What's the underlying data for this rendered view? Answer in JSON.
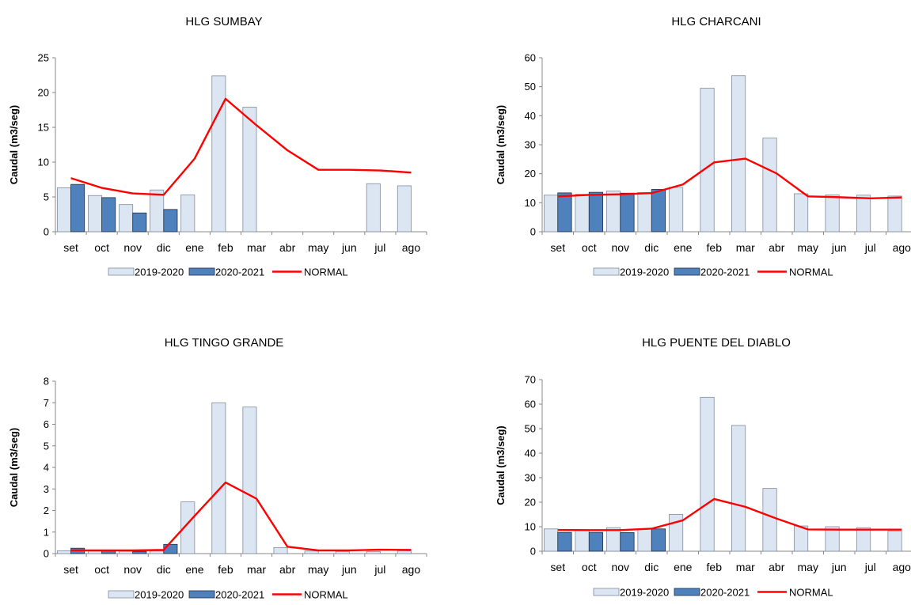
{
  "legend": {
    "series1": "2019-2020",
    "series2": "2020-2021",
    "normal": "NORMAL"
  },
  "colors": {
    "series1": "#dce6f2",
    "series2": "#4f81bd",
    "normal": "#ff0000"
  },
  "chart_data": [
    {
      "type": "bar",
      "title": "HLG SUMBAY",
      "ylabel": "Caudal (m3/seg)",
      "categories": [
        "set",
        "oct",
        "nov",
        "dic",
        "ene",
        "feb",
        "mar",
        "abr",
        "may",
        "jun",
        "jul",
        "ago"
      ],
      "ylim": [
        0,
        25
      ],
      "yticks": [
        0,
        5,
        10,
        15,
        20,
        25
      ],
      "legend_position": "bottom",
      "series": [
        {
          "name": "2019-2020",
          "kind": "bar",
          "values": [
            6.3,
            5.2,
            3.9,
            6.0,
            5.3,
            22.4,
            17.9,
            null,
            null,
            null,
            6.9,
            6.6
          ]
        },
        {
          "name": "2020-2021",
          "kind": "bar",
          "values": [
            6.8,
            4.9,
            2.7,
            3.2,
            null,
            null,
            null,
            null,
            null,
            null,
            null,
            null
          ]
        },
        {
          "name": "NORMAL",
          "kind": "line",
          "values": [
            7.7,
            6.3,
            5.5,
            5.3,
            10.5,
            19.1,
            15.3,
            11.7,
            8.9,
            8.9,
            8.8,
            8.5
          ]
        }
      ]
    },
    {
      "type": "bar",
      "title": "HLG CHARCANI",
      "ylabel": "Caudal (m3/seg)",
      "categories": [
        "set",
        "oct",
        "nov",
        "dic",
        "ene",
        "feb",
        "mar",
        "abr",
        "may",
        "jun",
        "jul",
        "ago"
      ],
      "ylim": [
        0,
        60
      ],
      "yticks": [
        0,
        10,
        20,
        30,
        40,
        50,
        60
      ],
      "legend_position": "bottom",
      "series": [
        {
          "name": "2019-2020",
          "kind": "bar",
          "values": [
            12.6,
            12.9,
            14.0,
            13.5,
            15.3,
            49.5,
            53.8,
            32.3,
            13.1,
            12.7,
            12.6,
            12.3
          ]
        },
        {
          "name": "2020-2021",
          "kind": "bar",
          "values": [
            13.4,
            13.6,
            13.3,
            14.6,
            null,
            null,
            null,
            null,
            null,
            null,
            null,
            null
          ]
        },
        {
          "name": "NORMAL",
          "kind": "line",
          "values": [
            12.2,
            12.7,
            12.9,
            13.3,
            16.3,
            23.9,
            25.2,
            20.1,
            12.2,
            11.9,
            11.5,
            11.8
          ]
        }
      ]
    },
    {
      "type": "bar",
      "title": "HLG TINGO GRANDE",
      "ylabel": "Caudal (m3/seg)",
      "categories": [
        "set",
        "oct",
        "nov",
        "dic",
        "ene",
        "feb",
        "mar",
        "abr",
        "may",
        "jun",
        "jul",
        "ago"
      ],
      "ylim": [
        0,
        8
      ],
      "yticks": [
        0,
        1,
        2,
        3,
        4,
        5,
        6,
        7,
        8
      ],
      "legend_position": "bottom",
      "series": [
        {
          "name": "2019-2020",
          "kind": "bar",
          "values": [
            0.13,
            0.12,
            0.11,
            0.12,
            2.4,
            7.0,
            6.8,
            0.28,
            0.12,
            0.1,
            0.1,
            0.13
          ]
        },
        {
          "name": "2020-2021",
          "kind": "bar",
          "values": [
            0.25,
            0.12,
            0.1,
            0.43,
            null,
            null,
            null,
            null,
            null,
            null,
            null,
            null
          ]
        },
        {
          "name": "NORMAL",
          "kind": "line",
          "values": [
            0.15,
            0.15,
            0.15,
            0.17,
            1.75,
            3.3,
            2.55,
            0.32,
            0.15,
            0.15,
            0.18,
            0.17
          ]
        }
      ]
    },
    {
      "type": "bar",
      "title": "HLG PUENTE DEL DIABLO",
      "ylabel": "Caudal (m3/seg)",
      "categories": [
        "set",
        "oct",
        "nov",
        "dic",
        "ene",
        "feb",
        "mar",
        "abr",
        "may",
        "jun",
        "jul",
        "ago"
      ],
      "ylim": [
        0,
        70
      ],
      "yticks": [
        0,
        10,
        20,
        30,
        40,
        50,
        60,
        70
      ],
      "legend_position": "bottom",
      "series": [
        {
          "name": "2019-2020",
          "kind": "bar",
          "values": [
            9.1,
            8.6,
            9.6,
            9.0,
            15.0,
            62.8,
            51.3,
            25.6,
            10.3,
            10.0,
            9.6,
            8.2
          ]
        },
        {
          "name": "2020-2021",
          "kind": "bar",
          "values": [
            7.7,
            7.7,
            7.6,
            9.1,
            null,
            null,
            null,
            null,
            null,
            null,
            null,
            null
          ]
        },
        {
          "name": "NORMAL",
          "kind": "line",
          "values": [
            8.7,
            8.6,
            8.6,
            9.2,
            12.6,
            21.3,
            18.1,
            13.3,
            8.9,
            8.8,
            8.8,
            8.8
          ]
        }
      ]
    }
  ]
}
